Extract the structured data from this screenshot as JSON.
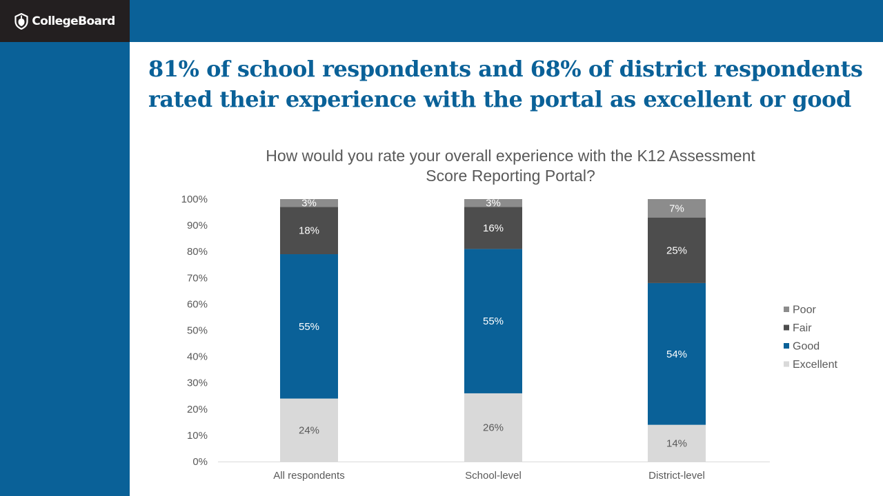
{
  "brand": {
    "logo_text": "CollegeBoard"
  },
  "slide": {
    "title": "81% of school respondents and 68% of district respondents rated their experience with the portal as excellent or good"
  },
  "colors": {
    "brand_blue": "#0a6198",
    "dark": "#231f20",
    "excellent": "#d9d9d9",
    "good": "#0a6198",
    "fair": "#4d4d4d",
    "poor": "#8c8c8c"
  },
  "chart_data": {
    "type": "bar",
    "stacked": true,
    "title_lines": [
      "How would you rate your overall experience with the K12 Assessment",
      "Score Reporting Portal?"
    ],
    "categories": [
      "All respondents",
      "School-level",
      "District-level"
    ],
    "series": [
      {
        "name": "Excellent",
        "values": [
          24,
          26,
          14
        ],
        "labels": [
          "24%",
          "26%",
          "14%"
        ],
        "color": "#d9d9d9",
        "label_color": "#595959"
      },
      {
        "name": "Good",
        "values": [
          55,
          55,
          54
        ],
        "labels": [
          "55%",
          "55%",
          "54%"
        ],
        "color": "#0a6198",
        "label_color": "#ffffff"
      },
      {
        "name": "Fair",
        "values": [
          18,
          16,
          25
        ],
        "labels": [
          "18%",
          "16%",
          "25%"
        ],
        "color": "#4d4d4d",
        "label_color": "#ffffff"
      },
      {
        "name": "Poor",
        "values": [
          3,
          3,
          7
        ],
        "labels": [
          "3%",
          "3%",
          "7%"
        ],
        "color": "#8c8c8c",
        "label_color": "#ffffff"
      }
    ],
    "y_ticks": [
      0,
      10,
      20,
      30,
      40,
      50,
      60,
      70,
      80,
      90,
      100
    ],
    "y_tick_labels": [
      "0%",
      "10%",
      "20%",
      "30%",
      "40%",
      "50%",
      "60%",
      "70%",
      "80%",
      "90%",
      "100%"
    ],
    "ylim": [
      0,
      100
    ],
    "legend_position": "right",
    "legend_order": [
      "Poor",
      "Fair",
      "Good",
      "Excellent"
    ],
    "grid": false
  }
}
